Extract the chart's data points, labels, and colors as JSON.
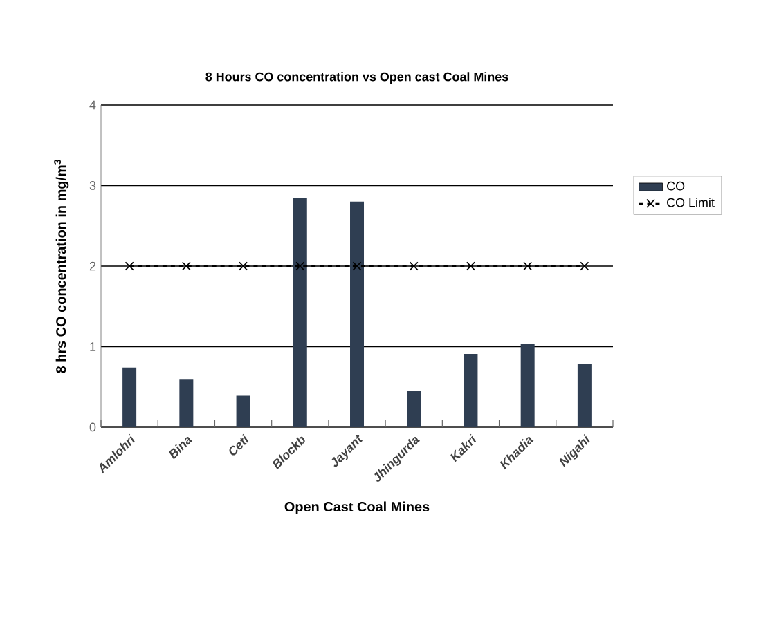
{
  "chart_data": {
    "type": "bar",
    "title": "8 Hours CO concentration vs Open cast Coal Mines",
    "xlabel": "Open Cast Coal Mines",
    "ylabel": "8 hrs CO concentration in mg/m$^{3}$",
    "categories": [
      "Amlohri",
      "Bina",
      "Ceti",
      "Blockb",
      "Jayant",
      "Jhingurda",
      "Kakri",
      "Khadia",
      "Nigahi"
    ],
    "series": [
      {
        "name": "CO",
        "type": "bar",
        "color": "#2f3e52",
        "values": [
          0.74,
          0.59,
          0.39,
          2.85,
          2.8,
          0.45,
          0.91,
          1.03,
          0.79
        ]
      },
      {
        "name": "CO Limit",
        "type": "line",
        "color": "#000000",
        "marker": "cross",
        "line_style": "dashed",
        "values": [
          2,
          2,
          2,
          2,
          2,
          2,
          2,
          2,
          2
        ]
      }
    ],
    "ylim": [
      0,
      4
    ],
    "yticks": [
      0,
      1,
      2,
      3,
      4
    ],
    "grid": "y",
    "legend": "right"
  }
}
